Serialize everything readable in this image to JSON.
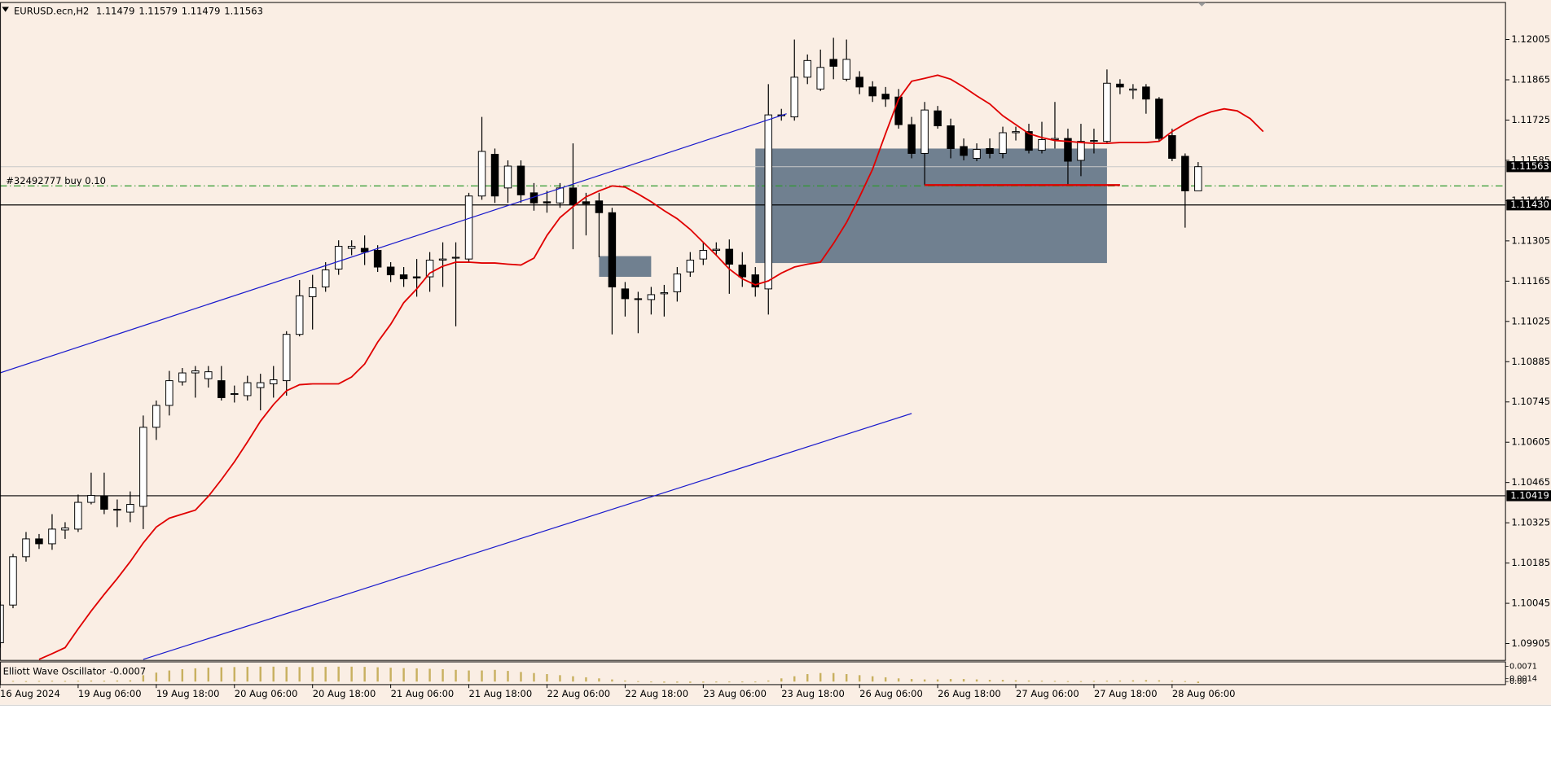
{
  "chart_data": [
    {
      "type": "candlestick",
      "symbol": "EURUSD.ecn,H2",
      "bull_color": "#ffffff",
      "bear_color": "#000000",
      "open": [
        1.09908,
        1.10039,
        1.10207,
        1.10269,
        1.10252,
        1.103,
        1.10303,
        1.10396,
        1.10417,
        1.10372,
        1.10362,
        1.10382,
        1.10657,
        1.10733,
        1.10815,
        1.10846,
        1.10826,
        1.10819,
        1.10771,
        1.10767,
        1.10795,
        1.10808,
        1.10819,
        1.1098,
        1.11111,
        1.11145,
        1.11207,
        1.11279,
        1.11279,
        1.11272,
        1.11214,
        1.11187,
        1.1118,
        1.1118,
        1.11238,
        1.11245,
        1.11242,
        1.11461,
        1.11606,
        1.11489,
        1.11565,
        1.11472,
        1.11441,
        1.11437,
        1.11489,
        1.11441,
        1.11444,
        1.11403,
        1.11138,
        1.11104,
        1.11101,
        1.11121,
        1.11128,
        1.11197,
        1.11242,
        1.11272,
        1.11276,
        1.11221,
        1.11187,
        1.11138,
        1.1174,
        1.11736,
        1.11874,
        1.11833,
        1.11936,
        1.11867,
        1.11874,
        1.1184,
        1.11815,
        1.11805,
        1.11709,
        1.11609,
        1.11757,
        1.11705,
        1.11633,
        1.11592,
        1.11626,
        1.11609,
        1.11681,
        1.11685,
        1.1162,
        1.11657,
        1.11661,
        1.11585,
        1.11651,
        1.11651,
        1.1185,
        1.11829,
        1.1184,
        1.11798,
        1.11671,
        1.11599,
        1.11479
      ],
      "high": [
        1.10052,
        1.10217,
        1.10293,
        1.10286,
        1.10355,
        1.10327,
        1.10423,
        1.10499,
        1.10499,
        1.10406,
        1.10434,
        1.10698,
        1.1075,
        1.10853,
        1.10863,
        1.1087,
        1.1087,
        1.1087,
        1.10802,
        1.10836,
        1.10843,
        1.1087,
        1.10991,
        1.11169,
        1.11187,
        1.11231,
        1.11307,
        1.11307,
        1.11324,
        1.1129,
        1.11231,
        1.11214,
        1.11242,
        1.11266,
        1.113,
        1.113,
        1.11472,
        1.11736,
        1.11626,
        1.11585,
        1.11585,
        1.11506,
        1.11479,
        1.11506,
        1.11644,
        1.11472,
        1.11472,
        1.1142,
        1.11162,
        1.11128,
        1.11145,
        1.11152,
        1.11214,
        1.11266,
        1.113,
        1.113,
        1.1131,
        1.11266,
        1.11214,
        1.1185,
        1.11764,
        1.12005,
        1.11953,
        1.1197,
        1.12011,
        1.12005,
        1.11895,
        1.1186,
        1.1184,
        1.11833,
        1.11736,
        1.11788,
        1.11774,
        1.1173,
        1.11661,
        1.11644,
        1.11661,
        1.11702,
        1.11702,
        1.11712,
        1.11719,
        1.11788,
        1.11695,
        1.11712,
        1.11695,
        1.11901,
        1.11867,
        1.1185,
        1.1185,
        1.11805,
        1.11695,
        1.11609,
        1.11579
      ],
      "low": [
        1.09891,
        1.10028,
        1.1019,
        1.10234,
        1.10231,
        1.10269,
        1.10293,
        1.10389,
        1.10355,
        1.1031,
        1.10327,
        1.10303,
        1.10613,
        1.10698,
        1.10802,
        1.1076,
        1.10795,
        1.1075,
        1.10743,
        1.1075,
        1.10716,
        1.1076,
        1.10767,
        1.10973,
        1.10997,
        1.11128,
        1.11187,
        1.11255,
        1.11221,
        1.11197,
        1.11162,
        1.11145,
        1.11111,
        1.11128,
        1.11145,
        1.11008,
        1.11231,
        1.11448,
        1.11437,
        1.11437,
        1.11437,
        1.1141,
        1.11403,
        1.1142,
        1.11276,
        1.11324,
        1.11248,
        1.1098,
        1.11042,
        1.10984,
        1.11049,
        1.11042,
        1.11094,
        1.1118,
        1.11221,
        1.11255,
        1.11121,
        1.11145,
        1.11111,
        1.11049,
        1.11723,
        1.11723,
        1.1185,
        1.11826,
        1.11867,
        1.1186,
        1.11815,
        1.11788,
        1.11771,
        1.11695,
        1.11592,
        1.11499,
        1.11695,
        1.11592,
        1.11585,
        1.11582,
        1.11592,
        1.11592,
        1.11654,
        1.11609,
        1.11609,
        1.11626,
        1.11499,
        1.1153,
        1.11609,
        1.11644,
        1.11815,
        1.11798,
        1.11747,
        1.11651,
        1.11582,
        1.11351,
        1.11479
      ],
      "close": [
        1.10039,
        1.10207,
        1.10269,
        1.10252,
        1.10303,
        1.10307,
        1.10396,
        1.1042,
        1.10372,
        1.10369,
        1.10389,
        1.10657,
        1.10733,
        1.10819,
        1.10846,
        1.10853,
        1.1085,
        1.1076,
        1.10774,
        1.10812,
        1.10812,
        1.10822,
        1.1098,
        1.11114,
        1.11142,
        1.11204,
        1.11286,
        1.11286,
        1.11266,
        1.11214,
        1.11187,
        1.11173,
        1.11176,
        1.11238,
        1.11242,
        1.11248,
        1.11461,
        1.11616,
        1.11461,
        1.11565,
        1.11465,
        1.11437,
        1.11437,
        1.11489,
        1.11431,
        1.11434,
        1.11403,
        1.11145,
        1.11104,
        1.11101,
        1.11118,
        1.11125,
        1.1119,
        1.11238,
        1.11272,
        1.11276,
        1.11224,
        1.1118,
        1.11145,
        1.11743,
        1.11743,
        1.11874,
        1.11932,
        1.11908,
        1.11912,
        1.11936,
        1.1184,
        1.11809,
        1.11798,
        1.11709,
        1.11609,
        1.1176,
        1.11705,
        1.11626,
        1.11602,
        1.11623,
        1.11609,
        1.11681,
        1.11685,
        1.1162,
        1.11657,
        1.11661,
        1.11582,
        1.11651,
        1.11654,
        1.11853,
        1.1184,
        1.11833,
        1.11798,
        1.11661,
        1.11592,
        1.11479,
        1.11563
      ],
      "xlim": [
        0,
        115.6
      ],
      "xticks": [
        {
          "value": 0,
          "label": "16 Aug 2024"
        },
        {
          "value": 6,
          "label": "19 Aug 06:00"
        },
        {
          "value": 12,
          "label": "19 Aug 18:00"
        },
        {
          "value": 18,
          "label": "20 Aug 06:00"
        },
        {
          "value": 24,
          "label": "20 Aug 18:00"
        },
        {
          "value": 30,
          "label": "21 Aug 06:00"
        },
        {
          "value": 36,
          "label": "21 Aug 18:00"
        },
        {
          "value": 42,
          "label": "22 Aug 06:00"
        },
        {
          "value": 48,
          "label": "22 Aug 18:00"
        },
        {
          "value": 54,
          "label": "23 Aug 06:00"
        },
        {
          "value": 60,
          "label": "23 Aug 18:00"
        },
        {
          "value": 66,
          "label": "26 Aug 06:00"
        },
        {
          "value": 72,
          "label": "26 Aug 18:00"
        },
        {
          "value": 78,
          "label": "27 Aug 06:00"
        },
        {
          "value": 84,
          "label": "27 Aug 18:00"
        },
        {
          "value": 90,
          "label": "28 Aug 06:00"
        }
      ],
      "ylim": [
        1.0985,
        1.12132
      ],
      "yticks": [
        1.12005,
        1.11865,
        1.11725,
        1.11585,
        1.11445,
        1.11305,
        1.11165,
        1.11025,
        1.10885,
        1.10745,
        1.10605,
        1.10465,
        1.10325,
        1.10185,
        1.10045,
        1.09905
      ],
      "moving_average": {
        "color": "#e00000",
        "values": [
          null,
          null,
          null,
          1.0985,
          1.0987,
          1.09891,
          1.09956,
          1.10018,
          1.10076,
          1.10131,
          1.1019,
          1.10255,
          1.1031,
          1.10341,
          1.10355,
          1.10369,
          1.10417,
          1.10475,
          1.10537,
          1.10606,
          1.10678,
          1.10736,
          1.10784,
          1.10805,
          1.10808,
          1.10808,
          1.10808,
          1.10832,
          1.10877,
          1.10953,
          1.11015,
          1.1109,
          1.11138,
          1.11193,
          1.11217,
          1.11231,
          1.11231,
          1.11228,
          1.11228,
          1.11224,
          1.11221,
          1.11245,
          1.11324,
          1.11386,
          1.11424,
          1.11458,
          1.11479,
          1.11496,
          1.11492,
          1.11468,
          1.11441,
          1.1141,
          1.11382,
          1.11345,
          1.113,
          1.11255,
          1.11207,
          1.11173,
          1.11152,
          1.11166,
          1.11193,
          1.11214,
          1.11224,
          1.11231,
          1.11296,
          1.11369,
          1.11458,
          1.11554,
          1.11678,
          1.11798,
          1.1186,
          1.1187,
          1.11881,
          1.11867,
          1.1184,
          1.11809,
          1.11781,
          1.1174,
          1.11709,
          1.11678,
          1.11664,
          1.11654,
          1.11651,
          1.11647,
          1.11644,
          1.11644,
          1.11647,
          1.11647,
          1.11647,
          1.11651,
          1.11685,
          1.11712,
          1.11736,
          1.11754,
          1.11764,
          1.11757,
          1.1173,
          1.11685
        ]
      },
      "trend_lines": [
        {
          "color": "#1a1acc",
          "x": [
            0,
            60.4
          ],
          "values": [
            1.10846,
            1.11747
          ]
        },
        {
          "color": "#1a1acc",
          "x": [
            11,
            70
          ],
          "values": [
            1.0985,
            1.10705
          ]
        }
      ],
      "zones": [
        {
          "color": "#708090",
          "x": [
            58,
            85
          ],
          "values": [
            1.11626,
            1.11228
          ]
        },
        {
          "color": "#708090",
          "x": [
            46,
            50
          ],
          "values": [
            1.11252,
            1.1118
          ]
        }
      ],
      "levels": [
        {
          "value": 1.1143,
          "label": "1.11430",
          "color": "#000000"
        },
        {
          "value": 1.10419,
          "color": "#000000"
        }
      ],
      "order": {
        "label": "#32492777 buy 0.10",
        "value": 1.11496,
        "color": "#2e9a2e"
      },
      "segment": {
        "color": "#e00000",
        "x": [
          71,
          86
        ],
        "value": 1.11499
      },
      "bid_color": "#c8c8c8"
    },
    {
      "type": "bar",
      "title": "Elliott Wave Oscillator",
      "color": "#c8b060",
      "values": [
        0.0002,
        0.0003,
        0.0002,
        0.0003,
        0.0004,
        0.0003,
        0.0004,
        0.0005,
        0.0004,
        0.0005,
        0.0006,
        0.003,
        0.0042,
        0.0052,
        0.0058,
        0.0062,
        0.0065,
        0.0067,
        0.0068,
        0.0069,
        0.007,
        0.007,
        0.0069,
        0.0068,
        0.0068,
        0.0069,
        0.007,
        0.007,
        0.0069,
        0.0067,
        0.0065,
        0.0063,
        0.0062,
        0.006,
        0.0058,
        0.0055,
        0.0052,
        0.0052,
        0.0055,
        0.005,
        0.0045,
        0.004,
        0.0035,
        0.003,
        0.0025,
        0.002,
        0.0015,
        0.001,
        0.0005,
        0.0002,
        -0.0002,
        -0.0005,
        -0.0005,
        -0.0006,
        -0.0005,
        -0.0004,
        -0.0003,
        -0.0002,
        -0.0001,
        0.0005,
        0.0015,
        0.0025,
        0.0035,
        0.004,
        0.004,
        0.0035,
        0.003,
        0.0025,
        0.002,
        0.0015,
        0.0012,
        0.001,
        0.001,
        0.0012,
        0.0012,
        0.001,
        0.0008,
        0.0008,
        0.0006,
        0.0005,
        0.0004,
        0.0003,
        0.0002,
        0.0002,
        0.0003,
        0.0004,
        0.0005,
        0.0006,
        0.0007,
        0.0006,
        0.0004,
        0.0002,
        -0.0007
      ],
      "ylim": [
        -0.0012,
        0.009
      ],
      "yticks": [
        0.0071,
        0.0014,
        {
          "value": 0,
          "label": "0.00"
        }
      ]
    }
  ]
}
